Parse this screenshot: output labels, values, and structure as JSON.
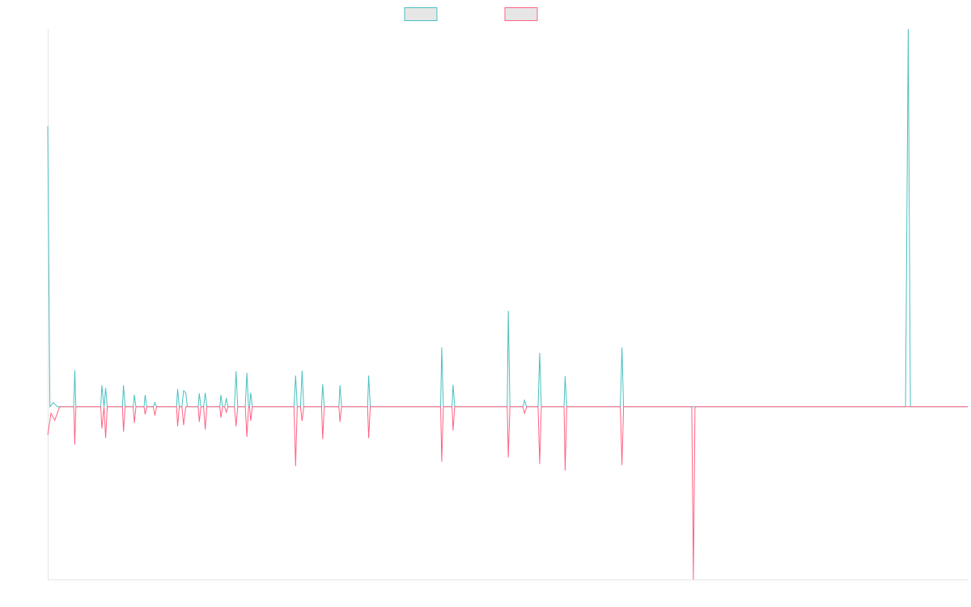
{
  "chart_data": {
    "type": "line",
    "title": "",
    "xlabel": "",
    "ylabel": "",
    "grid": false,
    "legend": "top-center",
    "x_range": [
      0,
      170
    ],
    "ylim": [
      -320,
      700
    ],
    "series": [
      {
        "color": "#4bc0c0",
        "points": [
          [
            0,
            520
          ],
          [
            0.4,
            0
          ],
          [
            1,
            8
          ],
          [
            1.8,
            0
          ],
          [
            2.1,
            0
          ],
          [
            2.3,
            0
          ],
          [
            4.8,
            0
          ],
          [
            5,
            68
          ],
          [
            5.2,
            0
          ],
          [
            9.8,
            0
          ],
          [
            10,
            40
          ],
          [
            10.4,
            0
          ],
          [
            10.7,
            35
          ],
          [
            11,
            0
          ],
          [
            13.8,
            0
          ],
          [
            14,
            40
          ],
          [
            14.3,
            0
          ],
          [
            15.8,
            0
          ],
          [
            16,
            22
          ],
          [
            16.3,
            0
          ],
          [
            17.8,
            0
          ],
          [
            18,
            22
          ],
          [
            18.3,
            0
          ],
          [
            19.5,
            0
          ],
          [
            19.8,
            8
          ],
          [
            20.1,
            0
          ],
          [
            20.5,
            0
          ],
          [
            20.9,
            0
          ],
          [
            23.8,
            0
          ],
          [
            24,
            33
          ],
          [
            24.3,
            0
          ],
          [
            24.8,
            0
          ],
          [
            25.1,
            30
          ],
          [
            25.5,
            26
          ],
          [
            25.8,
            0
          ],
          [
            27.8,
            0
          ],
          [
            28,
            25
          ],
          [
            28.3,
            0
          ],
          [
            28.8,
            0
          ],
          [
            29.1,
            26
          ],
          [
            29.4,
            0
          ],
          [
            31.8,
            0
          ],
          [
            32,
            22
          ],
          [
            32.3,
            0
          ],
          [
            32.7,
            0
          ],
          [
            33,
            16
          ],
          [
            33.3,
            0
          ],
          [
            34.5,
            0
          ],
          [
            34.8,
            66
          ],
          [
            35.1,
            0
          ],
          [
            36.5,
            0
          ],
          [
            36.8,
            63
          ],
          [
            37.1,
            0
          ],
          [
            37.3,
            0
          ],
          [
            37.5,
            26
          ],
          [
            37.8,
            0
          ],
          [
            45.5,
            0
          ],
          [
            45.8,
            58
          ],
          [
            46.1,
            0
          ],
          [
            46.7,
            0
          ],
          [
            47,
            67
          ],
          [
            47.3,
            0
          ],
          [
            50.6,
            0
          ],
          [
            50.8,
            42
          ],
          [
            51.1,
            0
          ],
          [
            53.8,
            0
          ],
          [
            54,
            40
          ],
          [
            54.3,
            0
          ],
          [
            59.1,
            0
          ],
          [
            59.3,
            58
          ],
          [
            59.6,
            0
          ],
          [
            72.6,
            0
          ],
          [
            72.8,
            110
          ],
          [
            73.1,
            0
          ],
          [
            74.7,
            0
          ],
          [
            74.9,
            41
          ],
          [
            75.2,
            0
          ],
          [
            84.9,
            0
          ],
          [
            85.1,
            178
          ],
          [
            85.4,
            0
          ],
          [
            87.8,
            0
          ],
          [
            88.1,
            12
          ],
          [
            88.5,
            0
          ],
          [
            90.6,
            0
          ],
          [
            90.9,
            100
          ],
          [
            91.2,
            0
          ],
          [
            95.4,
            0
          ],
          [
            95.6,
            57
          ],
          [
            95.9,
            0
          ],
          [
            105.8,
            0
          ],
          [
            106.1,
            110
          ],
          [
            106.4,
            0
          ],
          [
            119,
            0
          ],
          [
            119.5,
            0
          ],
          [
            158.5,
            0
          ],
          [
            159,
            700
          ],
          [
            159.4,
            0
          ],
          [
            170,
            0
          ]
        ]
      },
      {
        "color": "#ff6384",
        "points": [
          [
            0,
            -52
          ],
          [
            0.6,
            -12
          ],
          [
            1.3,
            -25
          ],
          [
            1.9,
            -8
          ],
          [
            2.2,
            0
          ],
          [
            4.8,
            0
          ],
          [
            5,
            -70
          ],
          [
            5.2,
            0
          ],
          [
            9.8,
            0
          ],
          [
            10,
            -40
          ],
          [
            10.4,
            0
          ],
          [
            10.7,
            -58
          ],
          [
            11,
            0
          ],
          [
            13.8,
            0
          ],
          [
            14,
            -46
          ],
          [
            14.3,
            0
          ],
          [
            15.8,
            0
          ],
          [
            16,
            -30
          ],
          [
            16.3,
            0
          ],
          [
            17.8,
            0
          ],
          [
            18,
            -14
          ],
          [
            18.3,
            0
          ],
          [
            19.5,
            0
          ],
          [
            19.8,
            -16
          ],
          [
            20.1,
            0
          ],
          [
            20.5,
            0
          ],
          [
            20.9,
            0
          ],
          [
            23.8,
            0
          ],
          [
            24,
            -36
          ],
          [
            24.3,
            0
          ],
          [
            24.8,
            0
          ],
          [
            25.1,
            -34
          ],
          [
            25.5,
            0
          ],
          [
            27.8,
            0
          ],
          [
            28,
            -28
          ],
          [
            28.3,
            0
          ],
          [
            28.8,
            0
          ],
          [
            29.1,
            -42
          ],
          [
            29.4,
            0
          ],
          [
            31.8,
            0
          ],
          [
            32,
            -20
          ],
          [
            32.3,
            0
          ],
          [
            32.7,
            0
          ],
          [
            33,
            -10
          ],
          [
            33.3,
            0
          ],
          [
            34.5,
            0
          ],
          [
            34.8,
            -36
          ],
          [
            35.1,
            0
          ],
          [
            36.5,
            0
          ],
          [
            36.8,
            -56
          ],
          [
            37.1,
            0
          ],
          [
            37.3,
            0
          ],
          [
            37.5,
            -26
          ],
          [
            37.8,
            0
          ],
          [
            45.5,
            0
          ],
          [
            45.8,
            -110
          ],
          [
            46.1,
            0
          ],
          [
            46.7,
            0
          ],
          [
            47,
            -26
          ],
          [
            47.3,
            0
          ],
          [
            50.6,
            0
          ],
          [
            50.8,
            -60
          ],
          [
            51.1,
            0
          ],
          [
            53.8,
            0
          ],
          [
            54,
            -28
          ],
          [
            54.3,
            0
          ],
          [
            59.1,
            0
          ],
          [
            59.3,
            -58
          ],
          [
            59.6,
            0
          ],
          [
            72.6,
            0
          ],
          [
            72.8,
            -102
          ],
          [
            73.1,
            0
          ],
          [
            74.7,
            0
          ],
          [
            74.9,
            -44
          ],
          [
            75.2,
            0
          ],
          [
            84.9,
            0
          ],
          [
            85.1,
            -94
          ],
          [
            85.4,
            0
          ],
          [
            87.8,
            0
          ],
          [
            88.1,
            -12
          ],
          [
            88.5,
            0
          ],
          [
            90.6,
            0
          ],
          [
            90.9,
            -106
          ],
          [
            91.2,
            0
          ],
          [
            95.4,
            0
          ],
          [
            95.6,
            -118
          ],
          [
            95.9,
            0
          ],
          [
            105.8,
            0
          ],
          [
            106.1,
            -108
          ],
          [
            106.4,
            0
          ],
          [
            119,
            0
          ],
          [
            119.3,
            -320
          ],
          [
            119.6,
            0
          ],
          [
            170,
            0
          ]
        ]
      }
    ]
  }
}
